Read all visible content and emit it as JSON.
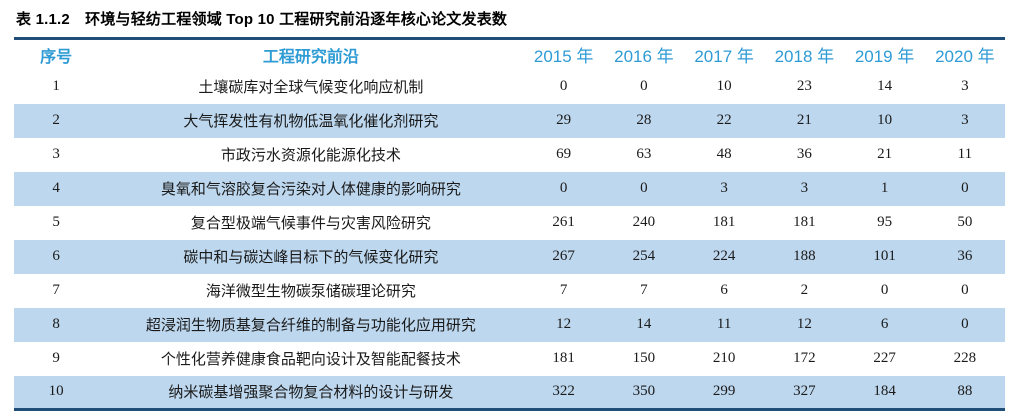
{
  "title": "表 1.1.2　环境与轻纺工程领域 Top 10 工程研究前沿逐年核心论文发表数",
  "colors": {
    "accent": "#2e9bd5",
    "dark-line": "#1f4e79",
    "band": "#bdd7ee"
  },
  "table": {
    "headers": [
      "序号",
      "工程研究前沿",
      "2015 年",
      "2016 年",
      "2017 年",
      "2018 年",
      "2019 年",
      "2020 年"
    ],
    "rows": [
      [
        "1",
        "土壤碳库对全球气候变化响应机制",
        "0",
        "0",
        "10",
        "23",
        "14",
        "3"
      ],
      [
        "2",
        "大气挥发性有机物低温氧化催化剂研究",
        "29",
        "28",
        "22",
        "21",
        "10",
        "3"
      ],
      [
        "3",
        "市政污水资源化能源化技术",
        "69",
        "63",
        "48",
        "36",
        "21",
        "11"
      ],
      [
        "4",
        "臭氧和气溶胶复合污染对人体健康的影响研究",
        "0",
        "0",
        "3",
        "3",
        "1",
        "0"
      ],
      [
        "5",
        "复合型极端气候事件与灾害风险研究",
        "261",
        "240",
        "181",
        "181",
        "95",
        "50"
      ],
      [
        "6",
        "碳中和与碳达峰目标下的气候变化研究",
        "267",
        "254",
        "224",
        "188",
        "101",
        "36"
      ],
      [
        "7",
        "海洋微型生物碳泵储碳理论研究",
        "7",
        "7",
        "6",
        "2",
        "0",
        "0"
      ],
      [
        "8",
        "超浸润生物质基复合纤维的制备与功能化应用研究",
        "12",
        "14",
        "11",
        "12",
        "6",
        "0"
      ],
      [
        "9",
        "个性化营养健康食品靶向设计及智能配餐技术",
        "181",
        "150",
        "210",
        "172",
        "227",
        "228"
      ],
      [
        "10",
        "纳米碳基增强聚合物复合材料的设计与研发",
        "322",
        "350",
        "299",
        "327",
        "184",
        "88"
      ]
    ]
  }
}
